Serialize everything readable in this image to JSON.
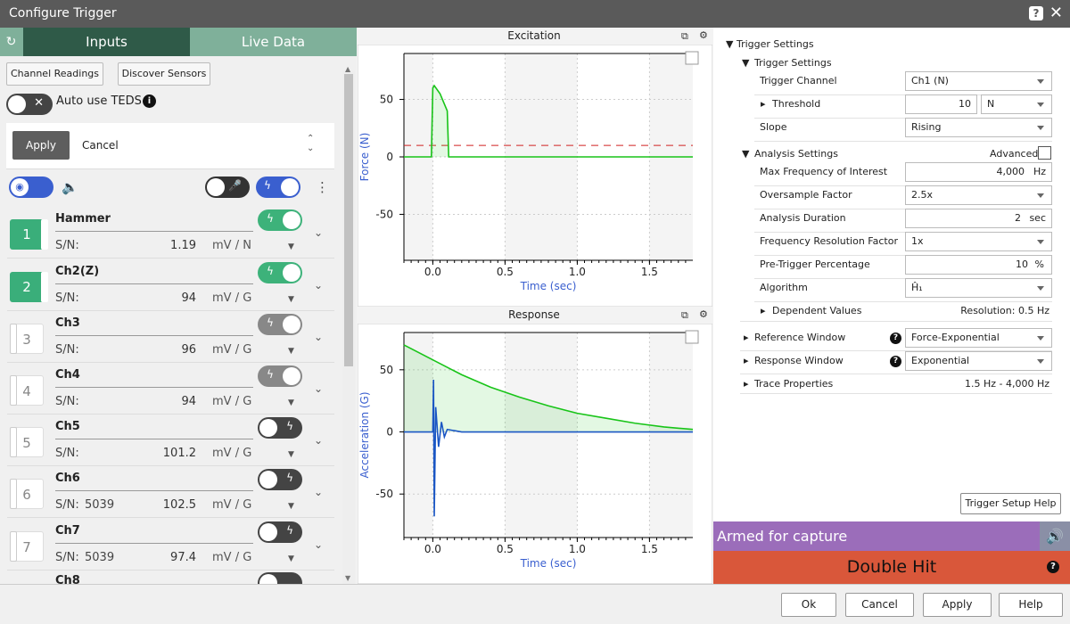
{
  "window": {
    "title": "Configure Trigger",
    "help_glyph": "?",
    "close_glyph": "✕"
  },
  "left": {
    "tabs": {
      "inputs": "Inputs",
      "live": "Live Data"
    },
    "buttons": {
      "channel_readings": "Channel Readings",
      "discover": "Discover Sensors"
    },
    "auto_teds": "Auto use TEDS",
    "apply": "Apply",
    "cancel": "Cancel",
    "channels": [
      {
        "num": "1",
        "name": "Hammer",
        "sn_label": "S/N:",
        "sn": "",
        "value": "1.19",
        "unit": "mV / N",
        "active": true,
        "toggle": "green"
      },
      {
        "num": "2",
        "name": "Ch2(Z)",
        "sn_label": "S/N:",
        "sn": "",
        "value": "94",
        "unit": "mV / G",
        "active": true,
        "toggle": "green"
      },
      {
        "num": "3",
        "name": "Ch3",
        "sn_label": "S/N:",
        "sn": "",
        "value": "96",
        "unit": "mV / G",
        "active": false,
        "toggle": "gray"
      },
      {
        "num": "4",
        "name": "Ch4",
        "sn_label": "S/N:",
        "sn": "",
        "value": "94",
        "unit": "mV / G",
        "active": false,
        "toggle": "gray"
      },
      {
        "num": "5",
        "name": "Ch5",
        "sn_label": "S/N:",
        "sn": "",
        "value": "101.2",
        "unit": "mV / G",
        "active": false,
        "toggle": "dark"
      },
      {
        "num": "6",
        "name": "Ch6",
        "sn_label": "S/N:",
        "sn": "5039",
        "value": "102.5",
        "unit": "mV / G",
        "active": false,
        "toggle": "dark"
      },
      {
        "num": "7",
        "name": "Ch7",
        "sn_label": "S/N:",
        "sn": "5039",
        "value": "97.4",
        "unit": "mV / G",
        "active": false,
        "toggle": "dark"
      },
      {
        "num": "",
        "name": "Ch8",
        "sn_label": "",
        "sn": "",
        "value": "",
        "unit": "",
        "active": false,
        "toggle": "dark"
      }
    ]
  },
  "plots": {
    "excitation": {
      "title": "Excitation",
      "ylabel": "Force (N)",
      "xlabel": "Time (sec)"
    },
    "response": {
      "title": "Response",
      "ylabel": "Acceleration (G)",
      "xlabel": "Time (sec)"
    }
  },
  "chart_data": [
    {
      "type": "line",
      "title": "Excitation",
      "xlabel": "Time (sec)",
      "ylabel": "Force (N)",
      "xlim": [
        -0.2,
        1.8
      ],
      "ylim": [
        -90,
        90
      ],
      "x_ticks": [
        "0.0",
        "0.5",
        "1.0",
        "1.5"
      ],
      "y_ticks": [
        "50",
        "0",
        "-50"
      ],
      "threshold": 10,
      "series": [
        {
          "values_x": [
            -0.2,
            -0.01,
            0.0,
            0.01,
            0.05,
            0.1,
            0.11,
            0.2,
            1.8
          ],
          "values_y": [
            0,
            0,
            60,
            62,
            55,
            40,
            0,
            0,
            0
          ],
          "color": "#18c418"
        }
      ]
    },
    {
      "type": "line",
      "title": "Response",
      "xlabel": "Time (sec)",
      "ylabel": "Acceleration (G)",
      "xlim": [
        -0.2,
        1.8
      ],
      "ylim": [
        -85,
        80
      ],
      "x_ticks": [
        "0.0",
        "0.5",
        "1.0",
        "1.5"
      ],
      "y_ticks": [
        "50",
        "0",
        "-50"
      ],
      "series": [
        {
          "name": "",
          "values_x": [
            -0.2,
            0.0,
            0.2,
            0.4,
            0.6,
            0.8,
            1.0,
            1.2,
            1.4,
            1.6,
            1.8
          ],
          "values_y": [
            70,
            58,
            46,
            36,
            28,
            21,
            15,
            11,
            7,
            4,
            2
          ],
          "color": "#18c418"
        },
        {
          "name": "",
          "values_x": [
            -0.2,
            0.0,
            0.005,
            0.01,
            0.02,
            0.04,
            0.06,
            0.08,
            0.1,
            0.2,
            1.8
          ],
          "values_y": [
            0,
            0,
            42,
            -68,
            20,
            -12,
            8,
            -4,
            2,
            0,
            0
          ],
          "color": "#1a56c4"
        }
      ]
    }
  ],
  "right": {
    "root": "Trigger Settings",
    "trigger_group": "Trigger Settings",
    "trigger_channel": {
      "label": "Trigger Channel",
      "value": "Ch1 (N)"
    },
    "threshold": {
      "label": "Threshold",
      "value": "10",
      "unit": "N"
    },
    "slope": {
      "label": "Slope",
      "value": "Rising"
    },
    "analysis_group": "Analysis Settings",
    "advanced": "Advanced",
    "max_freq": {
      "label": "Max Frequency of Interest",
      "value": "4,000",
      "unit": "Hz"
    },
    "oversample": {
      "label": "Oversample Factor",
      "value": "2.5x"
    },
    "duration": {
      "label": "Analysis Duration",
      "value": "2",
      "unit": "sec"
    },
    "freq_res": {
      "label": "Frequency Resolution Factor",
      "value": "1x"
    },
    "pretrigger": {
      "label": "Pre-Trigger Percentage",
      "value": "10",
      "unit": "%"
    },
    "algorithm": {
      "label": "Algorithm",
      "value": "Ĥ₁"
    },
    "dependent": {
      "label": "Dependent Values",
      "value": "Resolution: 0.5 Hz"
    },
    "ref_window": {
      "label": "Reference Window",
      "value": "Force-Exponential"
    },
    "resp_window": {
      "label": "Response Window",
      "value": "Exponential"
    },
    "trace": {
      "label": "Trace Properties",
      "value": "1.5 Hz - 4,000 Hz"
    },
    "help_button": "Trigger Setup Help"
  },
  "status": {
    "armed": "Armed for capture",
    "double_hit": "Double Hit"
  },
  "footer": {
    "ok": "Ok",
    "cancel": "Cancel",
    "apply": "Apply",
    "help": "Help"
  }
}
